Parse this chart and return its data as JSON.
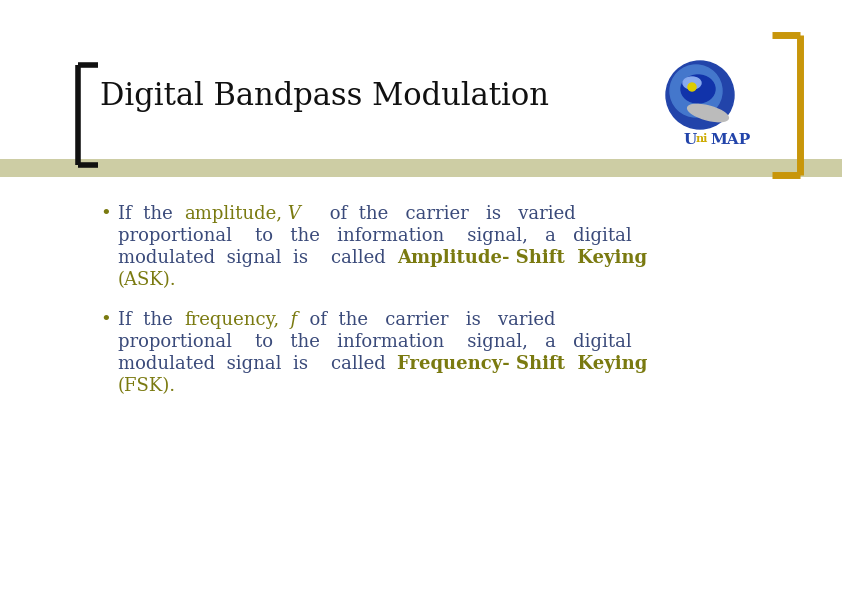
{
  "title": "Digital Bandpass Modulation",
  "title_color": "#111111",
  "title_fontsize": 22,
  "bg_color": "#ffffff",
  "bracket_left_color": "#111111",
  "bracket_right_color": "#c8960a",
  "divider_color": "#c8c89a",
  "text_blue": "#3a4a7a",
  "text_gold": "#7a7a10",
  "bullet_color": "#7a7a10",
  "fontsize_body": 13,
  "fontfamily": "DejaVu Serif",
  "bullet1_parts_line1": [
    {
      "t": "If  the  ",
      "c": "#3a4a7a",
      "s": "normal",
      "w": "normal"
    },
    {
      "t": "amplitude,",
      "c": "#7a7a10",
      "s": "normal",
      "w": "normal"
    },
    {
      "t": " V",
      "c": "#7a7a10",
      "s": "italic",
      "w": "normal"
    },
    {
      "t": "     of  the   carrier   is   varied",
      "c": "#3a4a7a",
      "s": "normal",
      "w": "normal"
    }
  ],
  "bullet1_line2": "proportional    to   the   information    signal,   a   digital",
  "bullet1_parts_line3": [
    {
      "t": "modulated  signal  is    called  ",
      "c": "#3a4a7a",
      "s": "normal",
      "w": "normal"
    },
    {
      "t": "Amplitude- Shift  Keying",
      "c": "#7a7a10",
      "s": "normal",
      "w": "bold"
    }
  ],
  "bullet1_line4": "(ASK).",
  "bullet2_parts_line1": [
    {
      "t": "If  the  ",
      "c": "#3a4a7a",
      "s": "normal",
      "w": "normal"
    },
    {
      "t": "frequency,",
      "c": "#7a7a10",
      "s": "normal",
      "w": "normal"
    },
    {
      "t": "  f",
      "c": "#7a7a10",
      "s": "italic",
      "w": "normal"
    },
    {
      "t": "  of  the   carrier   is   varied",
      "c": "#3a4a7a",
      "s": "normal",
      "w": "normal"
    }
  ],
  "bullet2_line2": "proportional    to   the   information    signal,   a   digital",
  "bullet2_parts_line3": [
    {
      "t": "modulated  signal  is    called  ",
      "c": "#3a4a7a",
      "s": "normal",
      "w": "normal"
    },
    {
      "t": "Frequency- Shift  Keying",
      "c": "#7a7a10",
      "s": "normal",
      "w": "bold"
    }
  ],
  "bullet2_line4": "(FSK)."
}
